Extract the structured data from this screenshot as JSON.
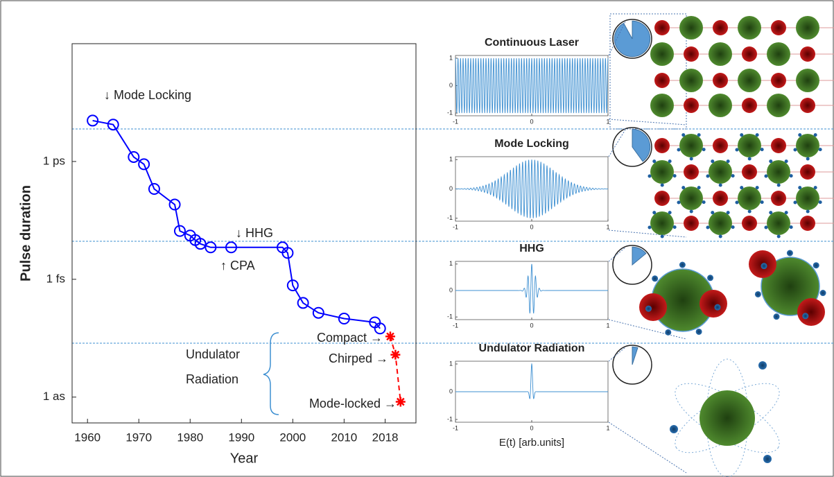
{
  "chart_data": [
    {
      "type": "line",
      "log_y": true,
      "xlabel": "Year",
      "ylabel": "Pulse duration",
      "xlim": [
        1957,
        2024
      ],
      "ylim": [
        2.2e-19,
        1e-09
      ],
      "xticks": [
        1960,
        1970,
        1980,
        1990,
        2000,
        2010,
        2018
      ],
      "yticks": [
        {
          "value": 1e-12,
          "label": "1 ps"
        },
        {
          "value": 1e-15,
          "label": "1 fs"
        },
        {
          "value": 1e-18,
          "label": "1 as"
        }
      ],
      "series": [
        {
          "color": "#0000ff",
          "marker": "circle",
          "dashed": false,
          "x": [
            1961,
            1965,
            1969,
            1971,
            1973,
            1977,
            1978,
            1980,
            1981,
            1982,
            1984,
            1988,
            1998,
            1999,
            2000,
            2002,
            2005,
            2010,
            2016,
            2017
          ],
          "values": [
            1.1e-11,
            8.7e-12,
            1.3e-12,
            8.5e-13,
            2e-13,
            8e-14,
            1.7e-14,
            1.3e-14,
            1e-14,
            8e-15,
            6.5e-15,
            6.5e-15,
            6.5e-15,
            4.7e-15,
            7e-16,
            2.5e-16,
            1.4e-16,
            1e-16,
            8e-17,
            5.6e-17
          ]
        },
        {
          "color": "#ff0000",
          "marker": "star",
          "dashed": true,
          "x": [
            2019,
            2020,
            2021
          ],
          "values": [
            3.5e-17,
            1.2e-17,
            7.6e-19
          ]
        }
      ],
      "annotations": [
        "↓ Mode Locking",
        "↓ HHG",
        "↑ CPA",
        "Undulator",
        "Radiation",
        "Compact →",
        "Chirped →",
        "Mode-locked →"
      ]
    },
    {
      "type": "waveform",
      "title": "Continuous Laser",
      "xlim": [
        -1,
        1
      ],
      "ylim": [
        -1.1,
        1.1
      ],
      "xticks": [
        -1,
        0,
        1
      ],
      "yticks": [
        -1,
        0,
        1
      ],
      "color": "#3d8fd1"
    },
    {
      "type": "waveform",
      "title": "Mode Locking",
      "xlim": [
        -1,
        1
      ],
      "ylim": [
        -1.1,
        1.1
      ],
      "xticks": [
        -1,
        0,
        1
      ],
      "yticks": [
        -1,
        0,
        1
      ],
      "color": "#3d8fd1"
    },
    {
      "type": "waveform",
      "title": "HHG",
      "xlim": [
        -1,
        1
      ],
      "ylim": [
        -1.1,
        1.1
      ],
      "xticks": [
        -1,
        0,
        1
      ],
      "yticks": [
        -1,
        0,
        1
      ],
      "color": "#3d8fd1"
    },
    {
      "type": "waveform",
      "title": "Undulator Radiation",
      "xlim": [
        -1,
        1
      ],
      "ylim": [
        -1.1,
        1.1
      ],
      "xticks": [
        -1,
        0,
        1
      ],
      "yticks": [
        -1,
        0,
        1
      ],
      "color": "#3d8fd1",
      "xlabel": "E(t) [arb.units]"
    }
  ]
}
